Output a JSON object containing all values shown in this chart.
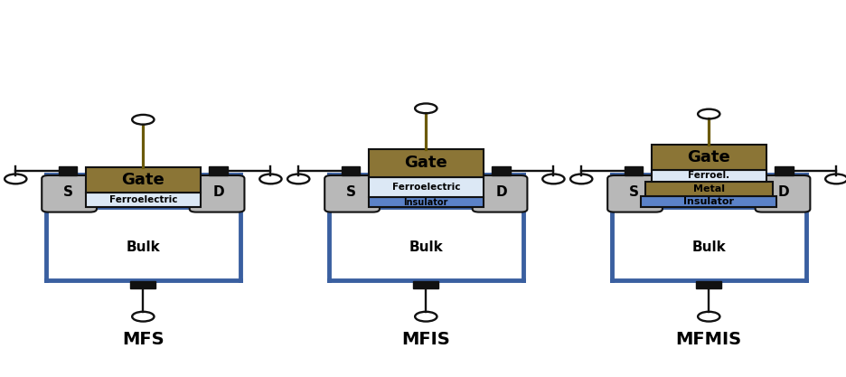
{
  "fig_width": 9.37,
  "fig_height": 4.17,
  "dpi": 100,
  "bg_color": "#ffffff",
  "colors": {
    "gate_metal": "#8B7536",
    "ferroelectric_light": "#dce8f5",
    "insulator_blue": "#5b82c8",
    "bulk_fill": "#ffffff",
    "silicon_gray": "#b8b8b8",
    "outline": "#111111",
    "contact_black": "#111111",
    "wire_gate": "#6b5a0a",
    "border_blue": "#3a5fa0"
  },
  "labels": {
    "gate": "Gate",
    "ferroelectric": "Ferroelectric",
    "ferroelectric_short": "Ferroel.",
    "insulator": "Insulator",
    "metal": "Metal",
    "source": "S",
    "drain": "D",
    "bulk": "Bulk"
  },
  "designs": [
    "MFS",
    "MFIS",
    "MFMIS"
  ],
  "centers": [
    0.168,
    0.503,
    0.838
  ]
}
